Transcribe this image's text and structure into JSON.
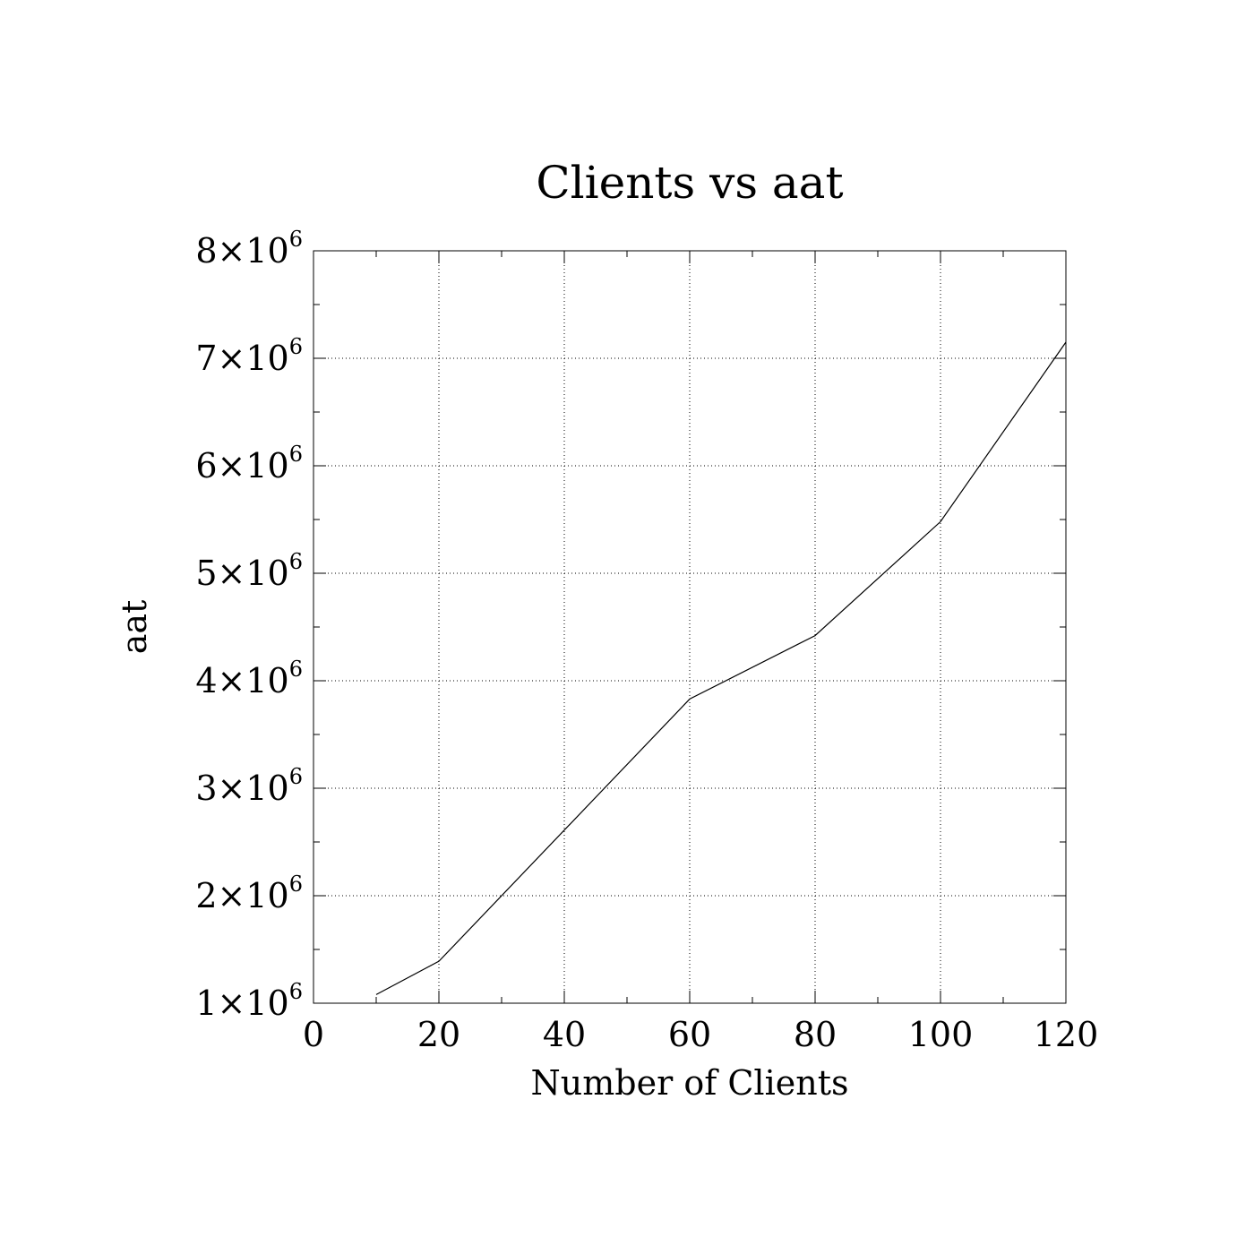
{
  "chart_data": {
    "type": "line",
    "title": "Clients vs aat",
    "xlabel": "Number of Clients",
    "ylabel": "aat",
    "xlim": [
      0,
      120
    ],
    "ylim": [
      1000000,
      8000000
    ],
    "x_ticks": [
      0,
      20,
      40,
      60,
      80,
      100,
      120
    ],
    "x_tick_labels": [
      "0",
      "20",
      "40",
      "60",
      "80",
      "100",
      "120"
    ],
    "y_ticks": [
      1000000,
      2000000,
      3000000,
      4000000,
      5000000,
      6000000,
      7000000,
      8000000
    ],
    "y_tick_labels": [
      {
        "mantissa": "1",
        "times": "×10",
        "exp": "6"
      },
      {
        "mantissa": "2",
        "times": "×10",
        "exp": "6"
      },
      {
        "mantissa": "3",
        "times": "×10",
        "exp": "6"
      },
      {
        "mantissa": "4",
        "times": "×10",
        "exp": "6"
      },
      {
        "mantissa": "5",
        "times": "×10",
        "exp": "6"
      },
      {
        "mantissa": "6",
        "times": "×10",
        "exp": "6"
      },
      {
        "mantissa": "7",
        "times": "×10",
        "exp": "6"
      },
      {
        "mantissa": "8",
        "times": "×10",
        "exp": "6"
      }
    ],
    "grid": true,
    "series": [
      {
        "x": [
          10,
          20,
          60,
          80,
          100,
          120
        ],
        "y": [
          1080000,
          1390000,
          3830000,
          4420000,
          5480000,
          7150000
        ]
      }
    ]
  }
}
